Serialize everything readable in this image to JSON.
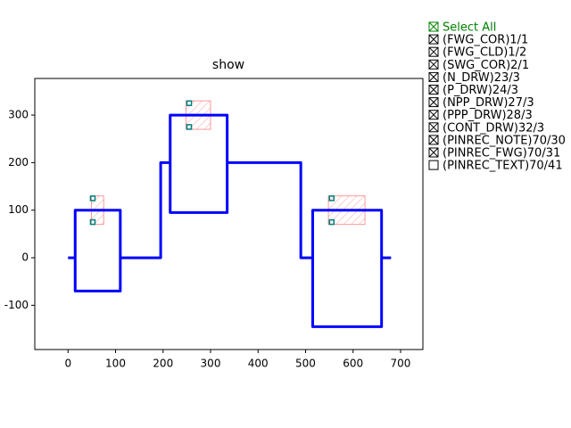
{
  "chart_data": {
    "type": "layout",
    "title": "show",
    "xlim": [
      -70,
      747
    ],
    "ylim": [
      -193,
      377
    ],
    "xticks": [
      0,
      100,
      200,
      300,
      400,
      500,
      600,
      700
    ],
    "yticks": [
      -100,
      0,
      100,
      200,
      300
    ],
    "series": [
      {
        "color": "#0000ff",
        "x": [
          0,
          15,
          15,
          110,
          110,
          195,
          195,
          215,
          215,
          335,
          335,
          490,
          490,
          515,
          515,
          660,
          660,
          680,
          null,
          15,
          15,
          110,
          110,
          null,
          215,
          215,
          335,
          335,
          null,
          515,
          515,
          660,
          660
        ],
        "y": [
          0,
          0,
          100,
          100,
          0,
          0,
          200,
          200,
          300,
          300,
          200,
          200,
          0,
          0,
          100,
          100,
          0,
          0,
          null,
          0,
          -70,
          -70,
          0,
          null,
          200,
          95,
          95,
          200,
          null,
          0,
          -145,
          -145,
          0
        ]
      }
    ],
    "boxes": {
      "color": "#ff8080",
      "x0": [
        49,
        248,
        548
      ],
      "x1": [
        75,
        300,
        625
      ],
      "y0": [
        70,
        270,
        70
      ],
      "y1": [
        130,
        330,
        130
      ]
    },
    "ports": {
      "color": "#008080",
      "x": [
        52,
        52,
        255,
        255,
        555,
        555
      ],
      "y": [
        125,
        75,
        325,
        275,
        125,
        75
      ]
    },
    "layers": [
      {
        "label": "Select All",
        "checked": true
      },
      {
        "label": "(FWG_COR)1/1",
        "checked": true
      },
      {
        "label": "(FWG_CLD)1/2",
        "checked": true
      },
      {
        "label": "(SWG_COR)2/1",
        "checked": true
      },
      {
        "label": "(N_DRW)23/3",
        "checked": true
      },
      {
        "label": "(P_DRW)24/3",
        "checked": true
      },
      {
        "label": "(NPP_DRW)27/3",
        "checked": true
      },
      {
        "label": "(PPP_DRW)28/3",
        "checked": true
      },
      {
        "label": "(CONT_DRW)32/3",
        "checked": true
      },
      {
        "label": "(PINREC_NOTE)70/30",
        "checked": true
      },
      {
        "label": "(PINREC_FWG)70/31",
        "checked": true
      },
      {
        "label": "(PINREC_TEXT)70/41",
        "checked": false
      }
    ]
  }
}
